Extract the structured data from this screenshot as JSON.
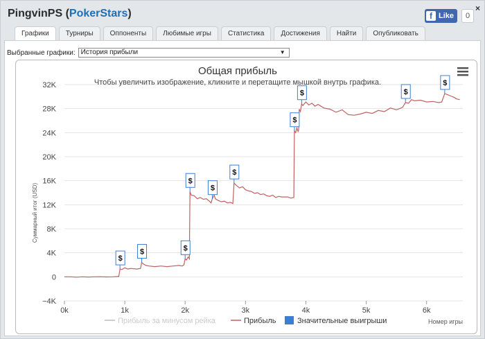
{
  "app": {
    "title": "PingvinPS",
    "site": "PokerStars",
    "close_glyph": "×"
  },
  "facebook": {
    "like_label": "Like",
    "like_count": "0",
    "icon": "facebook-f-icon"
  },
  "tabs": [
    {
      "label": "Графики",
      "active": true
    },
    {
      "label": "Турниры",
      "active": false
    },
    {
      "label": "Оппоненты",
      "active": false
    },
    {
      "label": "Любимые игры",
      "active": false
    },
    {
      "label": "Статистика",
      "active": false
    },
    {
      "label": "Достижения",
      "active": false
    },
    {
      "label": "Найти",
      "active": false
    },
    {
      "label": "Опубликовать",
      "active": false
    }
  ],
  "selector": {
    "label": "Выбранные графики:",
    "value": "История прибыли",
    "icon": "dropdown-arrow-icon"
  },
  "chart_data": {
    "type": "line",
    "title": "Общая прибыль",
    "subtitle": "Чтобы увеличить изображение, кликните и перетащите мышкой внутрь графика.",
    "xlabel": "Номер игры",
    "ylabel": "Суммарный итог (USD)",
    "xlim": [
      0,
      6600
    ],
    "ylim": [
      -4000,
      32000
    ],
    "x_ticks": [
      {
        "value": 0,
        "label": "0k"
      },
      {
        "value": 1000,
        "label": "1k"
      },
      {
        "value": 2000,
        "label": "2k"
      },
      {
        "value": 3000,
        "label": "3k"
      },
      {
        "value": 4000,
        "label": "4k"
      },
      {
        "value": 5000,
        "label": "5k"
      },
      {
        "value": 6000,
        "label": "6k"
      }
    ],
    "y_ticks": [
      {
        "value": -4000,
        "label": "−4K"
      },
      {
        "value": 0,
        "label": "0"
      },
      {
        "value": 4000,
        "label": "4K"
      },
      {
        "value": 8000,
        "label": "8K"
      },
      {
        "value": 12000,
        "label": "12K"
      },
      {
        "value": 16000,
        "label": "16K"
      },
      {
        "value": 20000,
        "label": "20K"
      },
      {
        "value": 24000,
        "label": "24K"
      },
      {
        "value": 28000,
        "label": "28K"
      },
      {
        "value": 32000,
        "label": "32K"
      }
    ],
    "grid": true,
    "legend_position": "bottom",
    "menu_icon": "hamburger-menu-icon",
    "series": [
      {
        "name": "Прибыль за минусом рейка",
        "color": "#cccccc",
        "visible": false,
        "points": []
      },
      {
        "name": "Прибыль",
        "color": "#c06060",
        "visible": true,
        "points": [
          [
            0,
            0
          ],
          [
            100,
            0
          ],
          [
            200,
            -50
          ],
          [
            300,
            0
          ],
          [
            400,
            -30
          ],
          [
            500,
            0
          ],
          [
            600,
            20
          ],
          [
            700,
            -20
          ],
          [
            800,
            0
          ],
          [
            880,
            50
          ],
          [
            900,
            50
          ],
          [
            920,
            1300
          ],
          [
            950,
            1200
          ],
          [
            1000,
            1500
          ],
          [
            1050,
            1300
          ],
          [
            1100,
            1400
          ],
          [
            1200,
            1300
          ],
          [
            1260,
            1400
          ],
          [
            1280,
            2400
          ],
          [
            1300,
            2200
          ],
          [
            1350,
            1900
          ],
          [
            1400,
            1800
          ],
          [
            1500,
            1700
          ],
          [
            1600,
            1800
          ],
          [
            1700,
            1700
          ],
          [
            1800,
            1800
          ],
          [
            1900,
            1900
          ],
          [
            1950,
            1800
          ],
          [
            1980,
            2000
          ],
          [
            2000,
            3000
          ],
          [
            2020,
            2800
          ],
          [
            2050,
            3300
          ],
          [
            2070,
            3000
          ],
          [
            2080,
            14200
          ],
          [
            2100,
            13600
          ],
          [
            2150,
            13500
          ],
          [
            2200,
            13000
          ],
          [
            2250,
            13200
          ],
          [
            2300,
            12900
          ],
          [
            2350,
            13000
          ],
          [
            2400,
            12600
          ],
          [
            2430,
            12300
          ],
          [
            2450,
            13000
          ],
          [
            2480,
            13600
          ],
          [
            2500,
            13000
          ],
          [
            2550,
            12700
          ],
          [
            2600,
            12500
          ],
          [
            2650,
            12600
          ],
          [
            2700,
            12300
          ],
          [
            2750,
            12400
          ],
          [
            2790,
            12200
          ],
          [
            2810,
            15600
          ],
          [
            2850,
            15200
          ],
          [
            2900,
            14800
          ],
          [
            2950,
            15000
          ],
          [
            3000,
            14500
          ],
          [
            3050,
            14300
          ],
          [
            3100,
            14200
          ],
          [
            3150,
            13900
          ],
          [
            3200,
            14000
          ],
          [
            3250,
            13700
          ],
          [
            3300,
            13800
          ],
          [
            3350,
            13500
          ],
          [
            3400,
            13400
          ],
          [
            3450,
            13600
          ],
          [
            3500,
            13200
          ],
          [
            3550,
            13400
          ],
          [
            3600,
            13300
          ],
          [
            3700,
            13300
          ],
          [
            3750,
            13100
          ],
          [
            3800,
            13200
          ],
          [
            3810,
            24300
          ],
          [
            3830,
            24000
          ],
          [
            3850,
            24800
          ],
          [
            3870,
            24200
          ],
          [
            3880,
            24400
          ],
          [
            3890,
            27900
          ],
          [
            3910,
            27500
          ],
          [
            3930,
            28800
          ],
          [
            3950,
            28500
          ],
          [
            4000,
            29100
          ],
          [
            4050,
            28600
          ],
          [
            4100,
            28900
          ],
          [
            4150,
            28400
          ],
          [
            4200,
            28700
          ],
          [
            4300,
            28100
          ],
          [
            4400,
            27900
          ],
          [
            4500,
            27400
          ],
          [
            4600,
            27800
          ],
          [
            4700,
            27000
          ],
          [
            4800,
            26900
          ],
          [
            4900,
            27100
          ],
          [
            5000,
            27400
          ],
          [
            5100,
            27200
          ],
          [
            5200,
            27700
          ],
          [
            5300,
            27500
          ],
          [
            5400,
            28100
          ],
          [
            5500,
            27800
          ],
          [
            5600,
            28200
          ],
          [
            5650,
            29000
          ],
          [
            5700,
            28900
          ],
          [
            5750,
            29500
          ],
          [
            5800,
            29300
          ],
          [
            5900,
            29400
          ],
          [
            6000,
            29100
          ],
          [
            6100,
            29200
          ],
          [
            6200,
            29000
          ],
          [
            6250,
            29100
          ],
          [
            6300,
            30500
          ],
          [
            6350,
            30300
          ],
          [
            6400,
            30100
          ],
          [
            6450,
            29900
          ],
          [
            6500,
            29600
          ],
          [
            6550,
            29500
          ]
        ]
      },
      {
        "name": "Значительные выигрыши",
        "color": "#3b7fd4",
        "marker_label": "$",
        "points": [
          [
            920,
            1300
          ],
          [
            1280,
            2400
          ],
          [
            2000,
            3000
          ],
          [
            2080,
            14200
          ],
          [
            2450,
            13000
          ],
          [
            2810,
            15600
          ],
          [
            3810,
            24300
          ],
          [
            3930,
            28800
          ],
          [
            5650,
            29000
          ],
          [
            6300,
            30500
          ]
        ]
      }
    ]
  }
}
